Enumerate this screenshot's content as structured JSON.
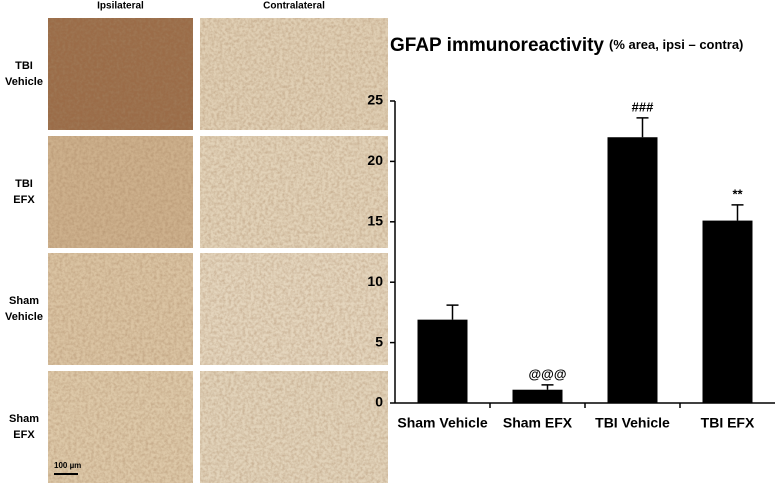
{
  "micrographs": {
    "columns": [
      "Ipsilateral",
      "Contralateral"
    ],
    "rows": [
      [
        "TBI",
        "Vehicle"
      ],
      [
        "TBI",
        "EFX"
      ],
      [
        "Sham",
        "Vehicle"
      ],
      [
        "Sham",
        "EFX"
      ]
    ],
    "scale_bar": "100 µm"
  },
  "chart_data": {
    "type": "bar",
    "title": "GFAP immunoreactivity",
    "subtitle": "(% area, ipsi – contra)",
    "categories": [
      "Sham Vehicle",
      "Sham EFX",
      "TBI Vehicle",
      "TBI EFX"
    ],
    "values": [
      6.9,
      1.1,
      22.0,
      15.1
    ],
    "errors": [
      1.2,
      0.4,
      1.6,
      1.3
    ],
    "annotations": [
      null,
      "@@@",
      "###",
      "**"
    ],
    "color": "#000000",
    "ylim": [
      0,
      25
    ],
    "yticks": [
      0,
      5,
      10,
      15,
      20,
      25
    ],
    "grid": false
  }
}
